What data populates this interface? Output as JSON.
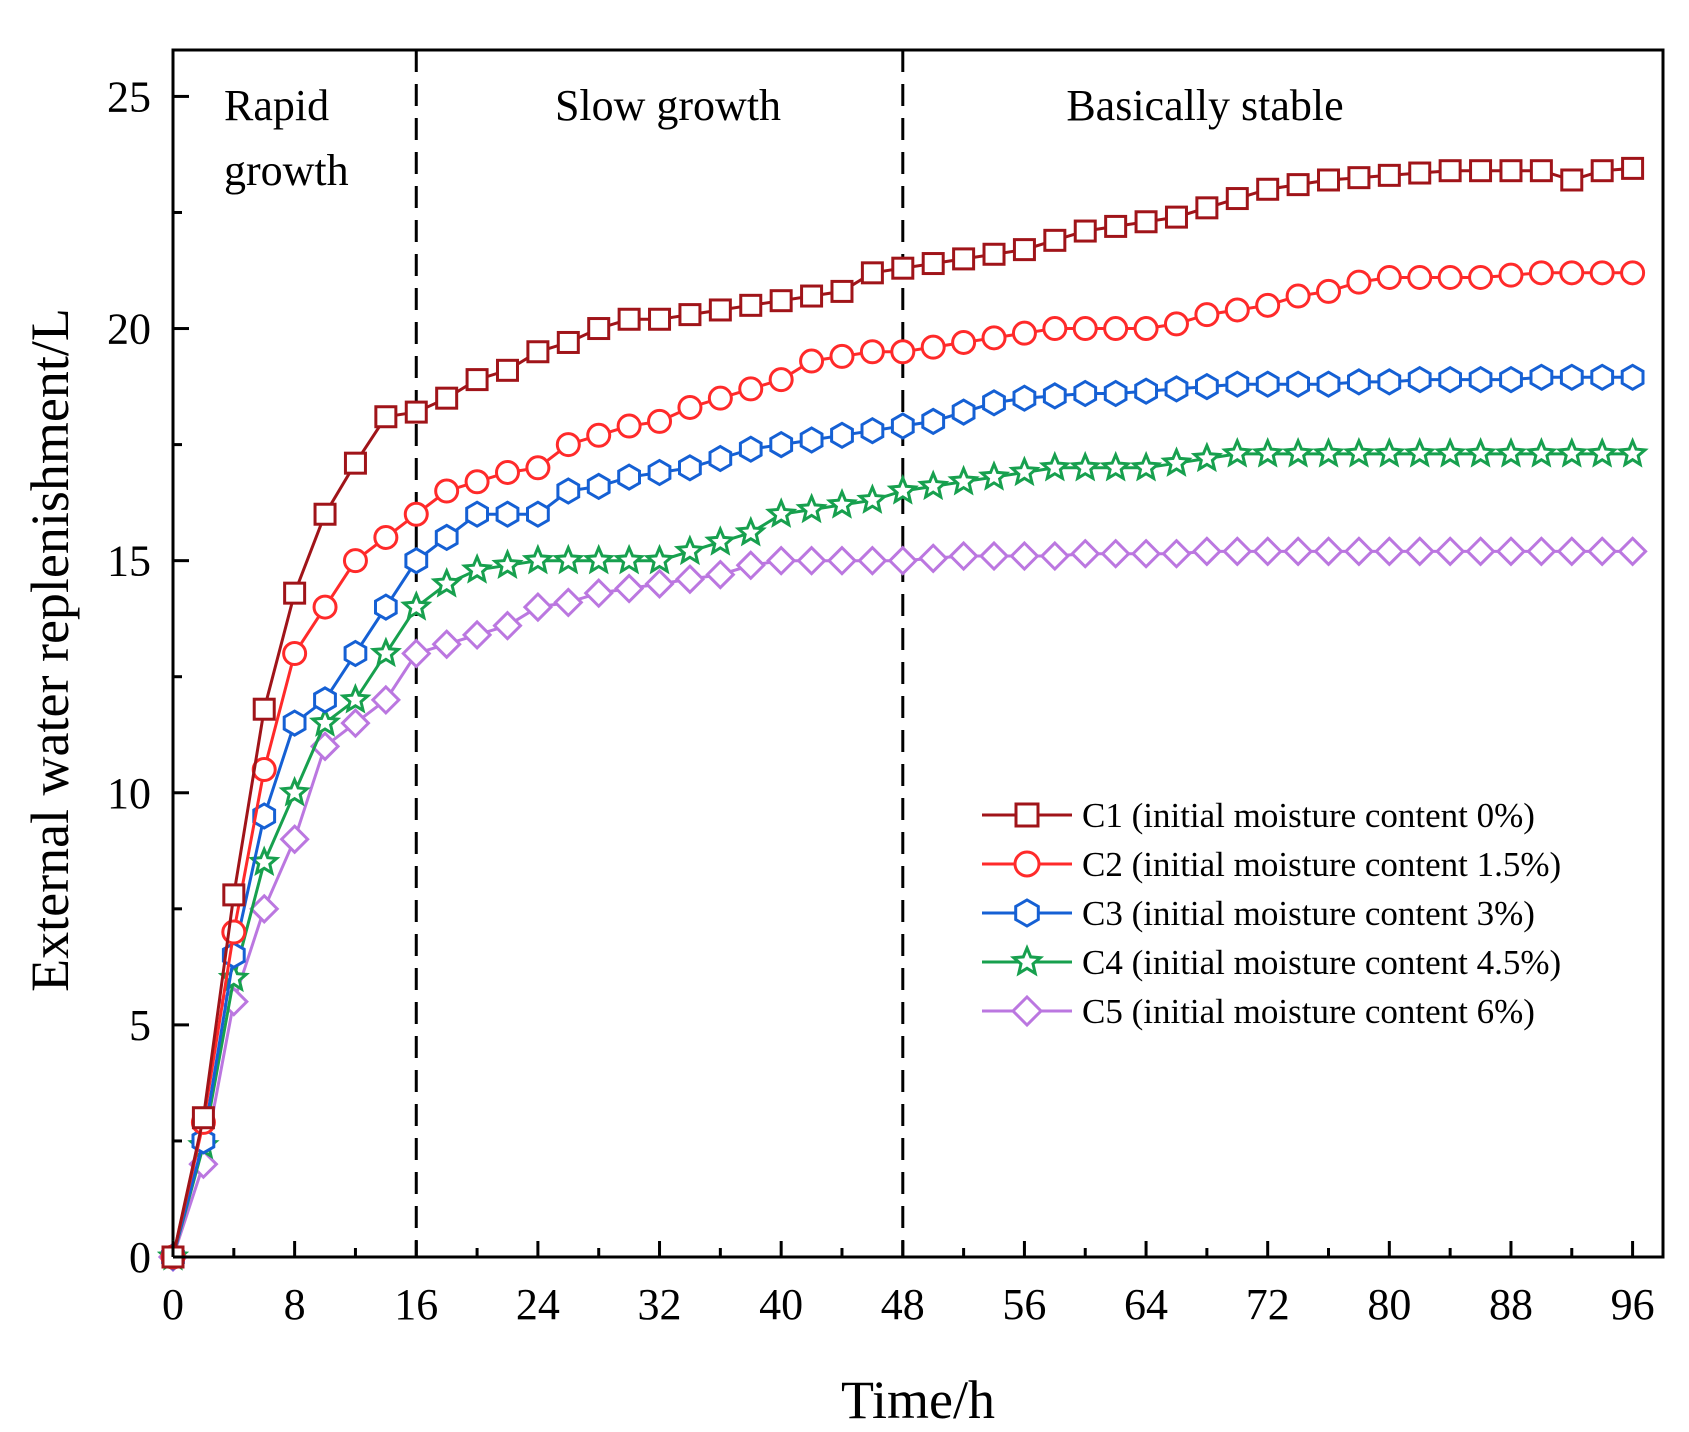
{
  "chart_data": {
    "type": "line",
    "title": "",
    "xlabel": "Time/h",
    "ylabel": "External water replenishment/L",
    "xlim": [
      0,
      98
    ],
    "ylim": [
      0,
      26
    ],
    "xticks": [
      0,
      8,
      16,
      24,
      32,
      40,
      48,
      56,
      64,
      72,
      80,
      88,
      96
    ],
    "yticks": [
      0,
      5,
      10,
      15,
      20,
      25
    ],
    "grid": false,
    "legend_position": "right",
    "regions": [
      {
        "label_lines": [
          "Rapid",
          "growth"
        ],
        "x_start": 0,
        "x_end": 16
      },
      {
        "label_lines": [
          "Slow growth"
        ],
        "x_start": 16,
        "x_end": 48
      },
      {
        "label_lines": [
          "Basically stable"
        ],
        "x_start": 48,
        "x_end": 96
      }
    ],
    "dividers": [
      16,
      48
    ],
    "x": [
      0,
      2,
      4,
      6,
      8,
      10,
      12,
      14,
      16,
      18,
      20,
      22,
      24,
      26,
      28,
      30,
      32,
      34,
      36,
      38,
      40,
      42,
      44,
      46,
      48,
      50,
      52,
      54,
      56,
      58,
      60,
      62,
      64,
      66,
      68,
      70,
      72,
      74,
      76,
      78,
      80,
      82,
      84,
      86,
      88,
      90,
      92,
      94,
      96
    ],
    "series": [
      {
        "name": "C1 (initial moisture content 0%)",
        "color": "#a01419",
        "marker": "square",
        "values": [
          0,
          3.0,
          7.8,
          11.8,
          14.3,
          16.0,
          17.1,
          18.1,
          18.2,
          18.5,
          18.9,
          19.1,
          19.5,
          19.7,
          20.0,
          20.2,
          20.2,
          20.3,
          20.4,
          20.5,
          20.6,
          20.7,
          20.8,
          21.2,
          21.3,
          21.4,
          21.5,
          21.6,
          21.7,
          21.9,
          22.1,
          22.2,
          22.3,
          22.4,
          22.6,
          22.8,
          23.0,
          23.1,
          23.2,
          23.25,
          23.3,
          23.35,
          23.4,
          23.4,
          23.4,
          23.4,
          23.2,
          23.4,
          23.45
        ]
      },
      {
        "name": "C2 (initial moisture content 1.5%)",
        "color": "#ff2a2a",
        "marker": "circle",
        "values": [
          0,
          2.9,
          7.0,
          10.5,
          13.0,
          14.0,
          15.0,
          15.5,
          16.0,
          16.5,
          16.7,
          16.9,
          17.0,
          17.5,
          17.7,
          17.9,
          18.0,
          18.3,
          18.5,
          18.7,
          18.9,
          19.3,
          19.4,
          19.5,
          19.5,
          19.6,
          19.7,
          19.8,
          19.9,
          20.0,
          20.0,
          20.0,
          20.0,
          20.1,
          20.3,
          20.4,
          20.5,
          20.7,
          20.8,
          21.0,
          21.1,
          21.1,
          21.1,
          21.1,
          21.15,
          21.2,
          21.2,
          21.2,
          21.2
        ]
      },
      {
        "name": "C3 (initial moisture content 3%)",
        "color": "#1560d4",
        "marker": "hexagon",
        "values": [
          0,
          2.5,
          6.5,
          9.5,
          11.5,
          12.0,
          13.0,
          14.0,
          15.0,
          15.5,
          16.0,
          16.0,
          16.0,
          16.5,
          16.6,
          16.8,
          16.9,
          17.0,
          17.2,
          17.4,
          17.5,
          17.6,
          17.7,
          17.8,
          17.9,
          18.0,
          18.2,
          18.4,
          18.5,
          18.55,
          18.6,
          18.6,
          18.65,
          18.7,
          18.75,
          18.8,
          18.8,
          18.8,
          18.8,
          18.85,
          18.85,
          18.9,
          18.9,
          18.9,
          18.9,
          18.95,
          18.95,
          18.95,
          18.95
        ]
      },
      {
        "name": "C4 (initial moisture content 4.5%)",
        "color": "#17a04e",
        "marker": "star",
        "values": [
          0,
          2.4,
          6.0,
          8.5,
          10.0,
          11.5,
          12.0,
          13.0,
          14.0,
          14.5,
          14.8,
          14.9,
          15.0,
          15.0,
          15.0,
          15.0,
          15.0,
          15.2,
          15.4,
          15.6,
          16.0,
          16.1,
          16.2,
          16.3,
          16.5,
          16.6,
          16.7,
          16.8,
          16.9,
          17.0,
          17.0,
          17.0,
          17.0,
          17.1,
          17.2,
          17.3,
          17.3,
          17.3,
          17.3,
          17.3,
          17.3,
          17.3,
          17.3,
          17.3,
          17.3,
          17.3,
          17.3,
          17.3,
          17.3
        ]
      },
      {
        "name": "C5 (initial moisture content 6%)",
        "color": "#bb77e0",
        "marker": "diamond",
        "values": [
          0,
          2.0,
          5.5,
          7.5,
          9.0,
          11.0,
          11.5,
          12.0,
          13.0,
          13.2,
          13.4,
          13.6,
          14.0,
          14.1,
          14.3,
          14.4,
          14.5,
          14.6,
          14.7,
          14.9,
          15.0,
          15.0,
          15.0,
          15.0,
          15.0,
          15.05,
          15.1,
          15.1,
          15.1,
          15.1,
          15.15,
          15.15,
          15.15,
          15.15,
          15.2,
          15.2,
          15.2,
          15.2,
          15.2,
          15.2,
          15.2,
          15.2,
          15.2,
          15.2,
          15.2,
          15.2,
          15.2,
          15.2,
          15.2
        ]
      }
    ]
  }
}
